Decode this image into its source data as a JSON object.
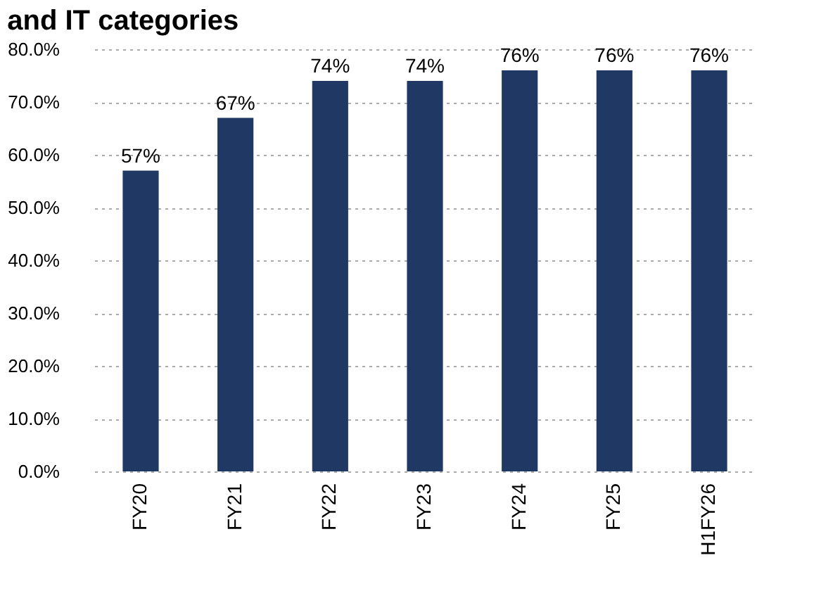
{
  "chart_data": {
    "type": "bar",
    "title": "and IT categories",
    "categories": [
      "FY20",
      "FY21",
      "FY22",
      "FY23",
      "FY24",
      "FY25",
      "H1FY26"
    ],
    "values": [
      57,
      67,
      74,
      74,
      76,
      76,
      76
    ],
    "color": "#1f3864",
    "value_labels": [
      "57%",
      "67%",
      "74%",
      "74%",
      "76%",
      "76%",
      "76%"
    ],
    "ylim": [
      0,
      80
    ],
    "yticks": [
      {
        "value": 0,
        "label": "0.0%"
      },
      {
        "value": 10,
        "label": "10.0%"
      },
      {
        "value": 20,
        "label": "20.0%"
      },
      {
        "value": 30,
        "label": "30.0%"
      },
      {
        "value": 40,
        "label": "40.0%"
      },
      {
        "value": 50,
        "label": "50.0%"
      },
      {
        "value": 60,
        "label": "60.0%"
      },
      {
        "value": 70,
        "label": "70.0%"
      },
      {
        "value": 80,
        "label": "80.0%"
      }
    ],
    "grid": "y"
  }
}
